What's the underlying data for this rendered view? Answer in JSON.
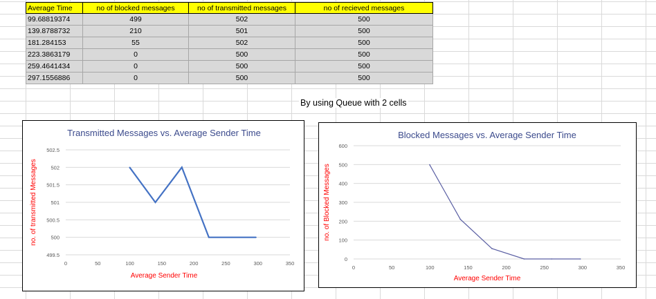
{
  "sheet": {
    "headers": [
      "Average Time",
      "no of blocked messages",
      "no of transmitted messages",
      "no of recieved messages"
    ],
    "rows": [
      [
        "99.68819374",
        "499",
        "502",
        "500"
      ],
      [
        "139.8788732",
        "210",
        "501",
        "500"
      ],
      [
        "181.284153",
        "55",
        "502",
        "500"
      ],
      [
        "223.3863179",
        "0",
        "500",
        "500"
      ],
      [
        "259.4641434",
        "0",
        "500",
        "500"
      ],
      [
        "297.1556886",
        "0",
        "500",
        "500"
      ]
    ],
    "note": "By using  Queue with 2 cells"
  },
  "colors": {
    "header_fill": "#ffff00",
    "cell_fill": "#d9d9d9",
    "title": "#3b4a8c",
    "axis_title": "#ff0000",
    "line1": "#4472c4",
    "line2": "#5a5fa3"
  },
  "chart_data": [
    {
      "type": "line",
      "title": "Transmitted Messages vs. Average Sender Time",
      "xlabel": "Average Sender Time",
      "ylabel": "no. of transmitted Messages",
      "xlim": [
        0,
        350
      ],
      "ylim": [
        499.5,
        502.5
      ],
      "xticks": [
        "0",
        "50",
        "100",
        "150",
        "200",
        "250",
        "300",
        "350"
      ],
      "yticks": [
        "499.5",
        "500",
        "500.5",
        "501",
        "501.5",
        "502",
        "502.5"
      ],
      "grid": true,
      "series": [
        {
          "x": [
            99.68819374,
            139.8788732,
            181.284153,
            223.3863179,
            259.4641434,
            297.1556886
          ],
          "y": [
            502,
            501,
            502,
            500,
            500,
            500
          ]
        }
      ]
    },
    {
      "type": "line",
      "title": "Blocked Messages vs. Average Sender Time",
      "xlabel": "Average Sender Time",
      "ylabel": "no. of Blocked Messages",
      "xlim": [
        0,
        350
      ],
      "ylim": [
        0,
        600
      ],
      "xticks": [
        "0",
        "50",
        "100",
        "150",
        "200",
        "250",
        "300",
        "350"
      ],
      "yticks": [
        "0",
        "100",
        "200",
        "300",
        "400",
        "500",
        "600"
      ],
      "grid": true,
      "series": [
        {
          "x": [
            99.68819374,
            139.8788732,
            181.284153,
            223.3863179,
            259.4641434,
            297.1556886
          ],
          "y": [
            499,
            210,
            55,
            0,
            0,
            0
          ]
        }
      ]
    }
  ]
}
